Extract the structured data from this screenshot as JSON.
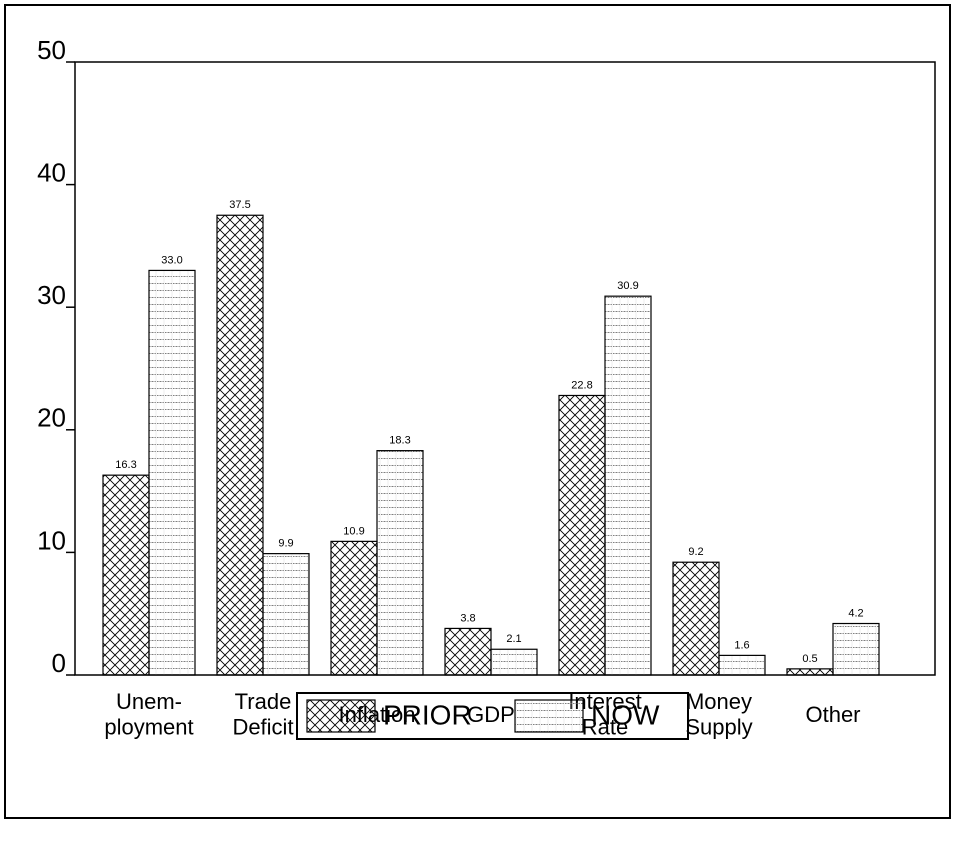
{
  "chart_data": {
    "type": "bar",
    "categories": [
      "Unem-\nployment",
      "Trade\nDeficit",
      "Inflation",
      "GDP",
      "Interest\nRate",
      "Money\nSupply",
      "Other"
    ],
    "series": [
      {
        "name": "PRIOR",
        "color": "#000000",
        "values": [
          16.3,
          37.5,
          10.9,
          3.8,
          22.8,
          9.2,
          0.5
        ],
        "value_labels": [
          "16.3",
          "37.5",
          "10.9",
          "3.8",
          "22.8",
          "9.2",
          "0.5"
        ]
      },
      {
        "name": "NOW",
        "color": "#000000",
        "values": [
          33.0,
          9.9,
          18.3,
          2.1,
          30.9,
          1.6,
          4.2
        ],
        "value_labels": [
          "33.0",
          "9.9",
          "18.3",
          "2.1",
          "30.9",
          "1.6",
          "4.2"
        ]
      }
    ],
    "ylim": [
      0,
      50
    ],
    "yticks": [
      0,
      10,
      20,
      30,
      40,
      50
    ],
    "legend": "bottom"
  }
}
